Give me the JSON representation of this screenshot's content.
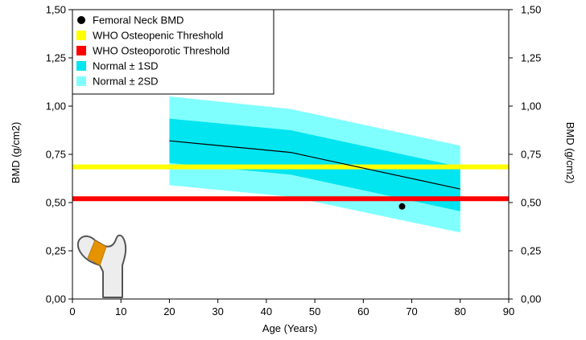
{
  "chart_data": {
    "type": "area",
    "title": "",
    "xlabel": "Age (Years)",
    "ylabel": "BMD (g/cm2)",
    "ylabel_right": "BMD (g/cm2)",
    "xlim": [
      0,
      90
    ],
    "ylim": [
      0,
      1.5
    ],
    "x_ticks": [
      0,
      10,
      20,
      30,
      40,
      50,
      60,
      70,
      80,
      90
    ],
    "x_tick_labels": [
      "0",
      "10",
      "20",
      "30",
      "40",
      "50",
      "60",
      "70",
      "80",
      "90"
    ],
    "y_ticks": [
      0,
      0.25,
      0.5,
      0.75,
      1.0,
      1.25,
      1.5
    ],
    "y_tick_labels": [
      "0,00",
      "0,25",
      "0,50",
      "0,75",
      "1,00",
      "1,25",
      "1,50"
    ],
    "grid": false,
    "legend_position": "top-left",
    "legend": [
      {
        "label": "Femoral Neck BMD",
        "marker": "circle",
        "color": "#000000"
      },
      {
        "label": "WHO Osteopenic Threshold",
        "marker": "square",
        "color": "#ffff00"
      },
      {
        "label": "WHO Osteoporotic Threshold",
        "marker": "square",
        "color": "#ff0000"
      },
      {
        "label": "Normal ± 1SD",
        "marker": "square",
        "color": "#00e5f0"
      },
      {
        "label": "Normal ± 2SD",
        "marker": "square",
        "color": "#80ffff"
      }
    ],
    "normal_mean": {
      "x": [
        20,
        45,
        80
      ],
      "y": [
        0.82,
        0.76,
        0.57
      ],
      "color": "#000000"
    },
    "band_1sd": {
      "x": [
        20,
        45,
        80
      ],
      "upper": [
        0.935,
        0.875,
        0.685
      ],
      "lower": [
        0.705,
        0.645,
        0.455
      ],
      "color": "#00e5f0"
    },
    "band_2sd": {
      "x": [
        20,
        45,
        80
      ],
      "upper": [
        1.05,
        0.985,
        0.795
      ],
      "lower": [
        0.59,
        0.53,
        0.345
      ],
      "color": "#80ffff"
    },
    "thresholds": [
      {
        "name": "WHO Osteopenic Threshold",
        "y": 0.685,
        "color": "#ffff00"
      },
      {
        "name": "WHO Osteoporotic Threshold",
        "y": 0.52,
        "color": "#ff0000"
      }
    ],
    "series": [
      {
        "name": "Femoral Neck BMD",
        "points": [
          {
            "x": 68,
            "y": 0.48
          }
        ],
        "color": "#000000"
      }
    ],
    "inset_icon": "femur-neck-icon"
  }
}
